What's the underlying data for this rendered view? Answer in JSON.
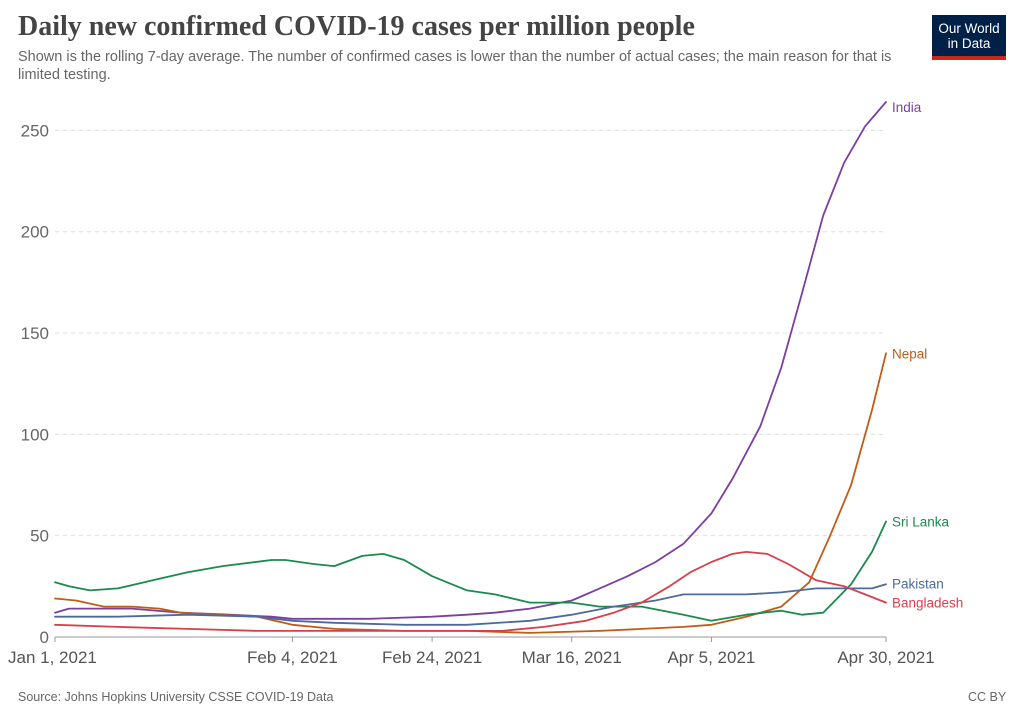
{
  "header": {
    "title": "Daily new confirmed COVID-19 cases per million people",
    "subtitle": "Shown is the rolling 7-day average. The number of confirmed cases is lower than the number of actual cases; the main reason for that is limited testing.",
    "logo_line1": "Our World",
    "logo_line2": "in Data"
  },
  "footer": {
    "source": "Source: Johns Hopkins University CSSE COVID-19 Data",
    "license": "CC BY"
  },
  "colors": {
    "logo_bg": "#002147",
    "logo_accent": "#ce261e",
    "grid": "#dddddd"
  },
  "chart_data": {
    "type": "line",
    "title": "Daily new confirmed COVID-19 cases per million people",
    "xlabel": "",
    "ylabel": "",
    "ylim": [
      0,
      265
    ],
    "y_ticks": [
      0,
      50,
      100,
      150,
      200,
      250
    ],
    "x_range": [
      "2021-01-01",
      "2021-04-30"
    ],
    "x_ticks": [
      {
        "date": "2021-01-01",
        "label": "Jan 1, 2021"
      },
      {
        "date": "2021-02-04",
        "label": "Feb 4, 2021"
      },
      {
        "date": "2021-02-24",
        "label": "Feb 24, 2021"
      },
      {
        "date": "2021-03-16",
        "label": "Mar 16, 2021"
      },
      {
        "date": "2021-04-05",
        "label": "Apr 5, 2021"
      },
      {
        "date": "2021-04-30",
        "label": "Apr 30, 2021"
      }
    ],
    "grid": "horizontal dashed",
    "legend": "labels at line ends",
    "series": [
      {
        "name": "India",
        "color": "#7b3fa0",
        "points": [
          [
            "2021-01-01",
            12
          ],
          [
            "2021-01-03",
            14
          ],
          [
            "2021-01-07",
            14
          ],
          [
            "2021-01-12",
            14
          ],
          [
            "2021-01-19",
            12
          ],
          [
            "2021-01-26",
            11
          ],
          [
            "2021-02-01",
            10
          ],
          [
            "2021-02-04",
            9
          ],
          [
            "2021-02-10",
            9
          ],
          [
            "2021-02-15",
            9
          ],
          [
            "2021-02-24",
            10
          ],
          [
            "2021-03-01",
            11
          ],
          [
            "2021-03-05",
            12
          ],
          [
            "2021-03-10",
            14
          ],
          [
            "2021-03-16",
            18
          ],
          [
            "2021-03-20",
            24
          ],
          [
            "2021-03-24",
            30
          ],
          [
            "2021-03-28",
            37
          ],
          [
            "2021-04-01",
            46
          ],
          [
            "2021-04-05",
            61
          ],
          [
            "2021-04-08",
            78
          ],
          [
            "2021-04-12",
            104
          ],
          [
            "2021-04-15",
            133
          ],
          [
            "2021-04-18",
            170
          ],
          [
            "2021-04-21",
            208
          ],
          [
            "2021-04-24",
            234
          ],
          [
            "2021-04-27",
            252
          ],
          [
            "2021-04-30",
            264
          ]
        ]
      },
      {
        "name": "Nepal",
        "color": "#c15c17",
        "points": [
          [
            "2021-01-01",
            19
          ],
          [
            "2021-01-04",
            18
          ],
          [
            "2021-01-08",
            15
          ],
          [
            "2021-01-12",
            15
          ],
          [
            "2021-01-16",
            14
          ],
          [
            "2021-01-19",
            12
          ],
          [
            "2021-01-24",
            11
          ],
          [
            "2021-01-30",
            10
          ],
          [
            "2021-02-04",
            6
          ],
          [
            "2021-02-10",
            4
          ],
          [
            "2021-02-20",
            3
          ],
          [
            "2021-03-01",
            3
          ],
          [
            "2021-03-10",
            2
          ],
          [
            "2021-03-20",
            3
          ],
          [
            "2021-03-26",
            4
          ],
          [
            "2021-04-01",
            5
          ],
          [
            "2021-04-05",
            6
          ],
          [
            "2021-04-10",
            10
          ],
          [
            "2021-04-15",
            15
          ],
          [
            "2021-04-19",
            27
          ],
          [
            "2021-04-22",
            50
          ],
          [
            "2021-04-25",
            75
          ],
          [
            "2021-04-28",
            112
          ],
          [
            "2021-04-30",
            140
          ]
        ]
      },
      {
        "name": "Sri Lanka",
        "color": "#1a8a4e",
        "points": [
          [
            "2021-01-01",
            27
          ],
          [
            "2021-01-03",
            25
          ],
          [
            "2021-01-06",
            23
          ],
          [
            "2021-01-10",
            24
          ],
          [
            "2021-01-15",
            28
          ],
          [
            "2021-01-20",
            32
          ],
          [
            "2021-01-25",
            35
          ],
          [
            "2021-02-01",
            38
          ],
          [
            "2021-02-03",
            38
          ],
          [
            "2021-02-07",
            36
          ],
          [
            "2021-02-10",
            35
          ],
          [
            "2021-02-14",
            40
          ],
          [
            "2021-02-17",
            41
          ],
          [
            "2021-02-20",
            38
          ],
          [
            "2021-02-24",
            30
          ],
          [
            "2021-03-01",
            23
          ],
          [
            "2021-03-05",
            21
          ],
          [
            "2021-03-10",
            17
          ],
          [
            "2021-03-16",
            17
          ],
          [
            "2021-03-20",
            15
          ],
          [
            "2021-03-26",
            15
          ],
          [
            "2021-04-01",
            11
          ],
          [
            "2021-04-05",
            8
          ],
          [
            "2021-04-10",
            11
          ],
          [
            "2021-04-15",
            13
          ],
          [
            "2021-04-18",
            11
          ],
          [
            "2021-04-21",
            12
          ],
          [
            "2021-04-25",
            26
          ],
          [
            "2021-04-28",
            42
          ],
          [
            "2021-04-30",
            57
          ]
        ]
      },
      {
        "name": "Pakistan",
        "color": "#4c6a9c",
        "points": [
          [
            "2021-01-01",
            10
          ],
          [
            "2021-01-10",
            10
          ],
          [
            "2021-01-20",
            11
          ],
          [
            "2021-01-30",
            10
          ],
          [
            "2021-02-04",
            8
          ],
          [
            "2021-02-10",
            7
          ],
          [
            "2021-02-20",
            6
          ],
          [
            "2021-03-01",
            6
          ],
          [
            "2021-03-10",
            8
          ],
          [
            "2021-03-16",
            11
          ],
          [
            "2021-03-22",
            15
          ],
          [
            "2021-03-28",
            18
          ],
          [
            "2021-04-01",
            21
          ],
          [
            "2021-04-05",
            21
          ],
          [
            "2021-04-10",
            21
          ],
          [
            "2021-04-15",
            22
          ],
          [
            "2021-04-20",
            24
          ],
          [
            "2021-04-25",
            24
          ],
          [
            "2021-04-28",
            24
          ],
          [
            "2021-04-30",
            26
          ]
        ]
      },
      {
        "name": "Bangladesh",
        "color": "#d6404a",
        "points": [
          [
            "2021-01-01",
            6
          ],
          [
            "2021-01-10",
            5
          ],
          [
            "2021-01-20",
            4
          ],
          [
            "2021-01-30",
            3
          ],
          [
            "2021-02-10",
            3
          ],
          [
            "2021-02-20",
            3
          ],
          [
            "2021-03-01",
            3
          ],
          [
            "2021-03-06",
            3
          ],
          [
            "2021-03-12",
            5
          ],
          [
            "2021-03-18",
            8
          ],
          [
            "2021-03-22",
            12
          ],
          [
            "2021-03-26",
            17
          ],
          [
            "2021-03-30",
            25
          ],
          [
            "2021-04-02",
            32
          ],
          [
            "2021-04-05",
            37
          ],
          [
            "2021-04-08",
            41
          ],
          [
            "2021-04-10",
            42
          ],
          [
            "2021-04-13",
            41
          ],
          [
            "2021-04-16",
            36
          ],
          [
            "2021-04-20",
            28
          ],
          [
            "2021-04-24",
            25
          ],
          [
            "2021-04-27",
            21
          ],
          [
            "2021-04-30",
            17
          ]
        ]
      }
    ]
  }
}
